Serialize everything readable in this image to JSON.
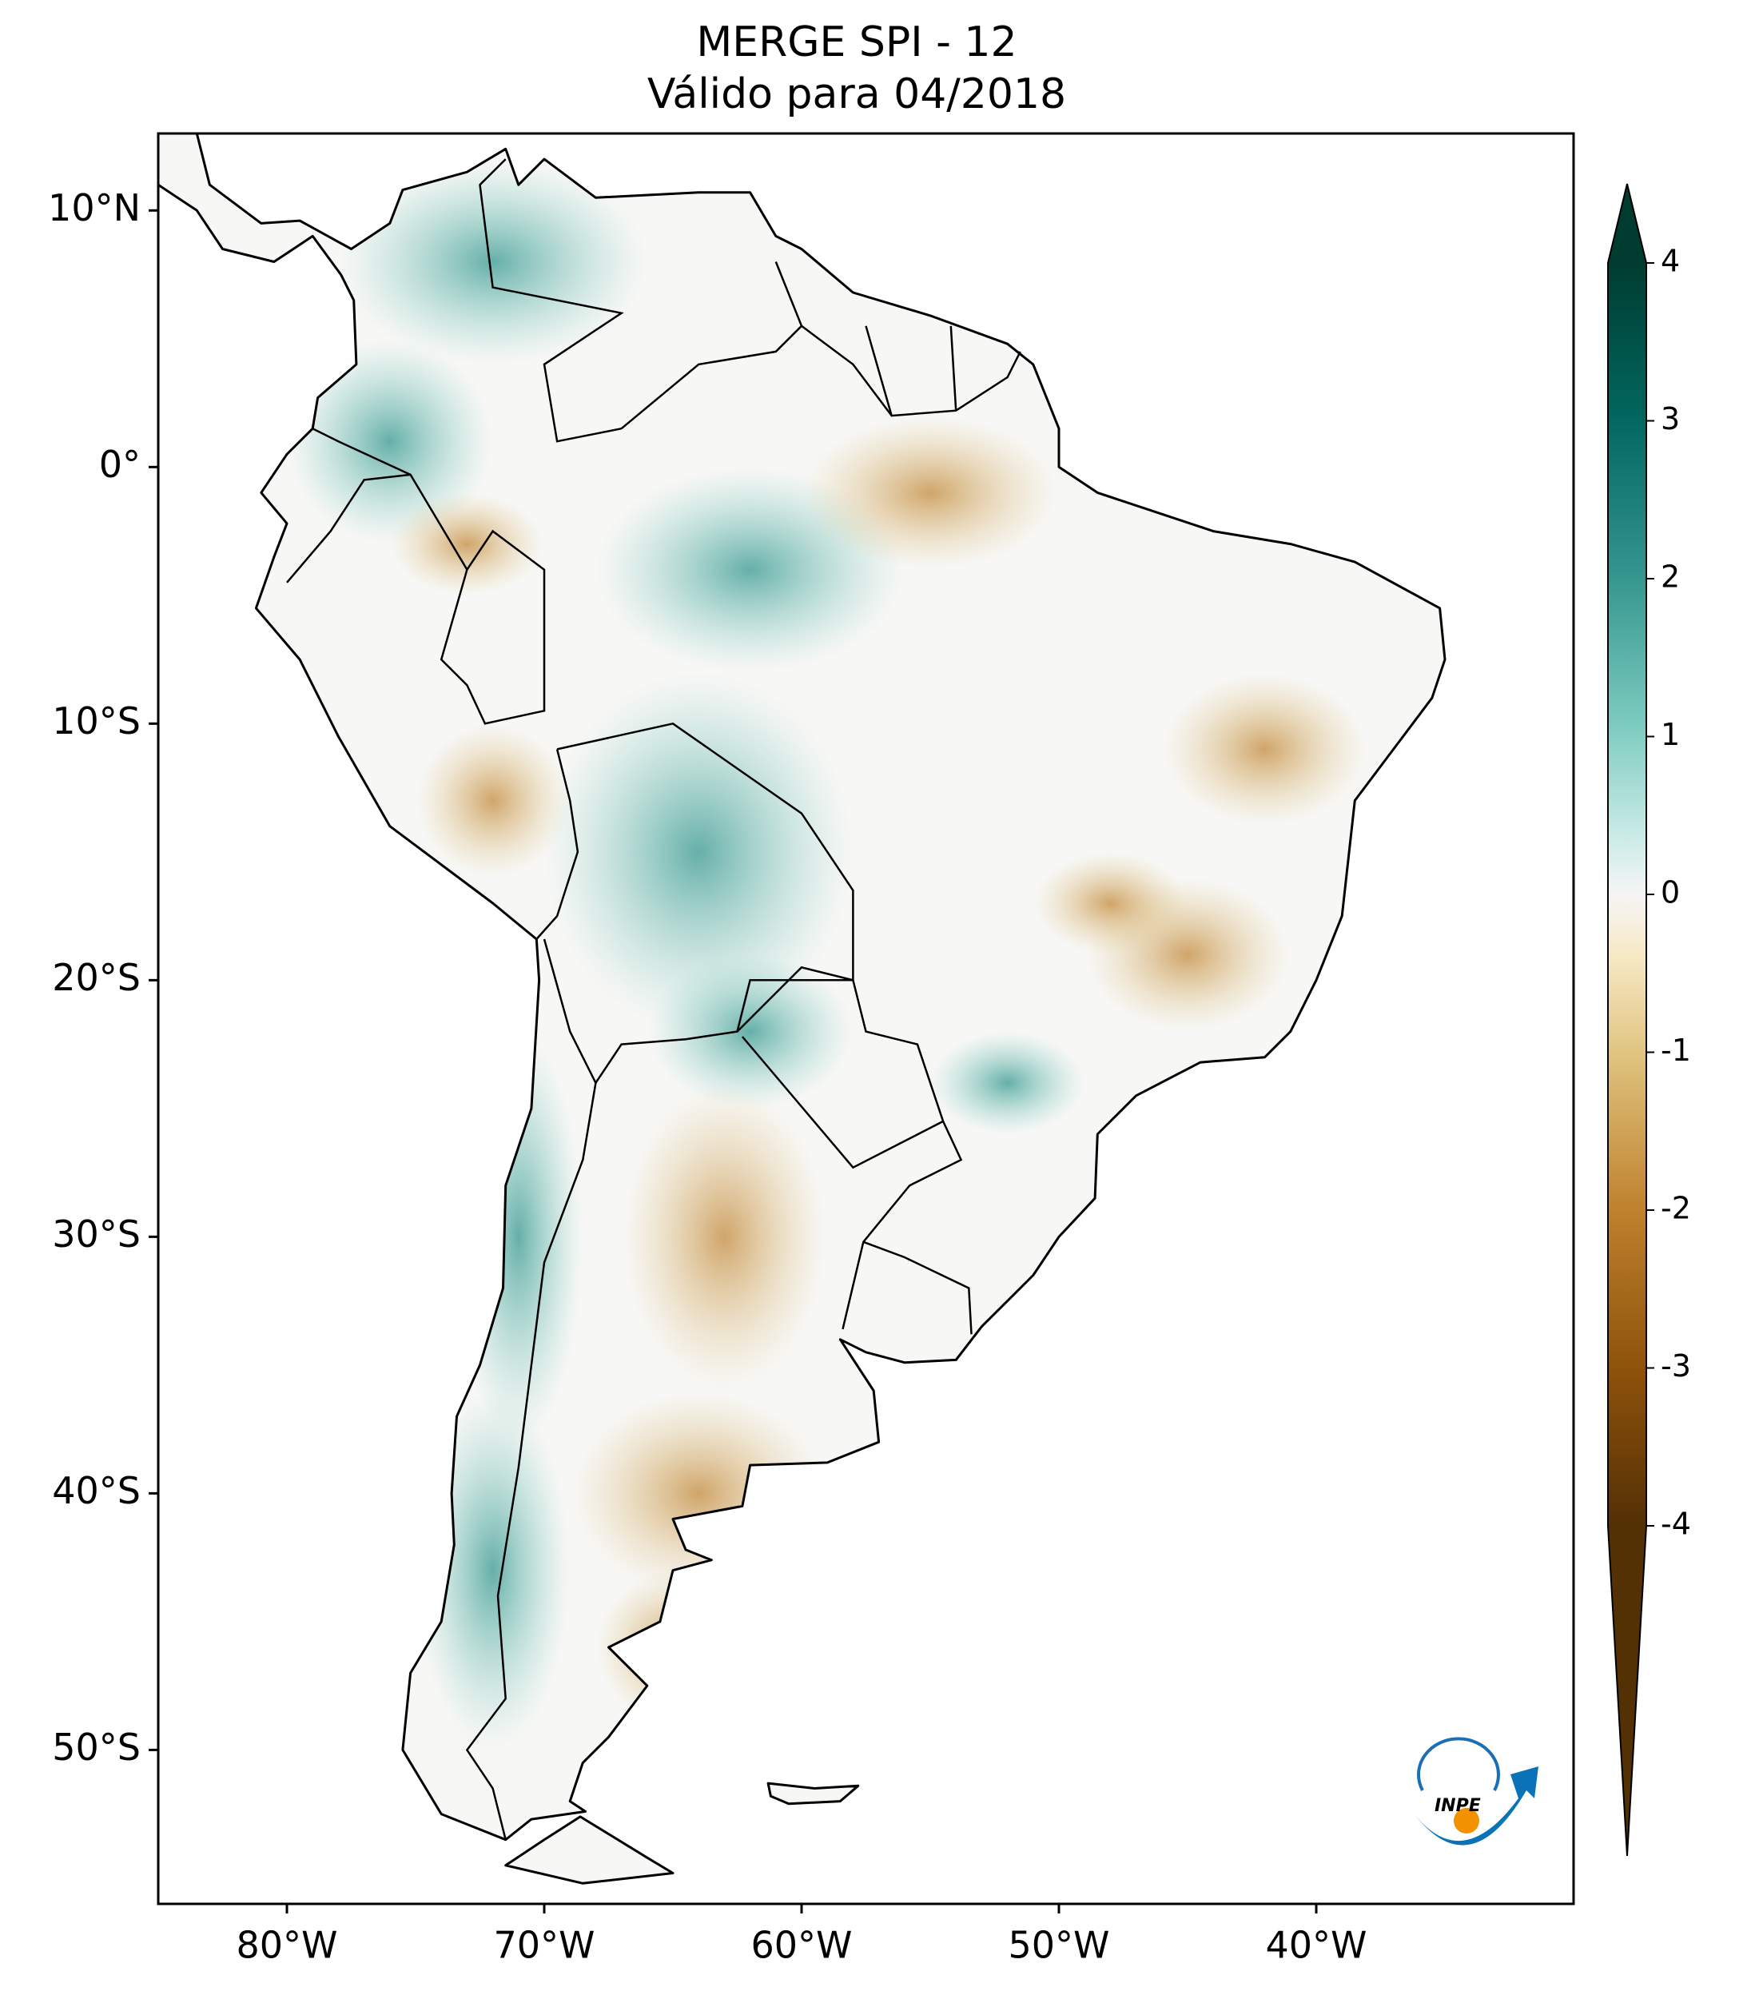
{
  "title": "MERGE   SPI - 12",
  "subtitle": "Válido para 04/2018",
  "map": {
    "xlim": [
      -85,
      -30
    ],
    "ylim": [
      -56,
      13
    ],
    "xticks": [
      {
        "value": -80,
        "label": "80°W"
      },
      {
        "value": -70,
        "label": "70°W"
      },
      {
        "value": -60,
        "label": "60°W"
      },
      {
        "value": -50,
        "label": "50°W"
      },
      {
        "value": -40,
        "label": "40°W"
      }
    ],
    "yticks": [
      {
        "value": 10,
        "label": "10°N"
      },
      {
        "value": 0,
        "label": "0°"
      },
      {
        "value": -10,
        "label": "10°S"
      },
      {
        "value": -20,
        "label": "20°S"
      },
      {
        "value": -30,
        "label": "30°S"
      },
      {
        "value": -40,
        "label": "40°S"
      },
      {
        "value": -50,
        "label": "50°S"
      }
    ]
  },
  "colorbar": {
    "ticks": [
      4,
      3,
      2,
      1,
      0,
      -1,
      -2,
      -3,
      -4
    ]
  },
  "logo": "INPE"
}
